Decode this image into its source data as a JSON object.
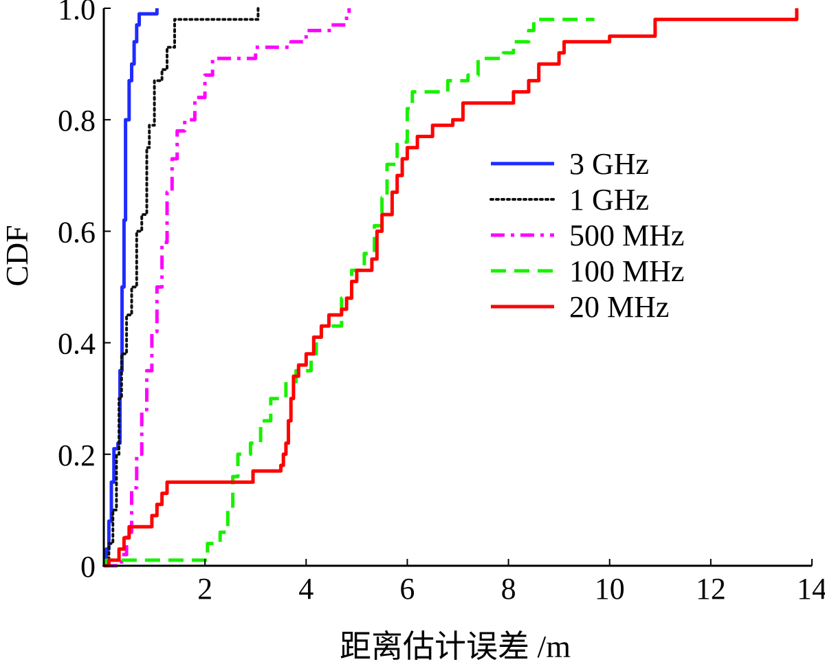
{
  "chart_data": {
    "type": "line",
    "title": "",
    "xlabel": "距离估计误差 /m",
    "ylabel": "CDF",
    "xlim": [
      0,
      14
    ],
    "ylim": [
      0,
      1
    ],
    "xticks": [
      "2",
      "4",
      "6",
      "8",
      "10",
      "12",
      "14"
    ],
    "yticks": [
      "0",
      "0.2",
      "0.4",
      "0.6",
      "0.8",
      "1.0"
    ],
    "grid": false,
    "legend_position": "center-right",
    "series": [
      {
        "name": "3 GHz",
        "color": "#1f2cff",
        "style": "solid",
        "points": [
          [
            0,
            0
          ],
          [
            0.05,
            0.03
          ],
          [
            0.1,
            0.08
          ],
          [
            0.15,
            0.15
          ],
          [
            0.2,
            0.21
          ],
          [
            0.28,
            0.22
          ],
          [
            0.32,
            0.35
          ],
          [
            0.36,
            0.5
          ],
          [
            0.4,
            0.62
          ],
          [
            0.43,
            0.8
          ],
          [
            0.5,
            0.87
          ],
          [
            0.55,
            0.9
          ],
          [
            0.6,
            0.94
          ],
          [
            0.65,
            0.97
          ],
          [
            0.7,
            0.99
          ],
          [
            0.85,
            0.99
          ],
          [
            1.05,
            1.0
          ]
        ]
      },
      {
        "name": "1 GHz",
        "color": "#111111",
        "style": "dotted",
        "points": [
          [
            0,
            0
          ],
          [
            0.1,
            0.04
          ],
          [
            0.18,
            0.1
          ],
          [
            0.25,
            0.2
          ],
          [
            0.3,
            0.3
          ],
          [
            0.35,
            0.38
          ],
          [
            0.45,
            0.45
          ],
          [
            0.55,
            0.5
          ],
          [
            0.65,
            0.6
          ],
          [
            0.75,
            0.63
          ],
          [
            0.85,
            0.75
          ],
          [
            0.9,
            0.79
          ],
          [
            1.0,
            0.87
          ],
          [
            1.15,
            0.89
          ],
          [
            1.25,
            0.93
          ],
          [
            1.4,
            0.98
          ],
          [
            1.8,
            0.98
          ],
          [
            3.0,
            0.98
          ],
          [
            3.05,
            1.0
          ]
        ]
      },
      {
        "name": "500 MHz",
        "color": "#ff00ff",
        "style": "dashdot",
        "points": [
          [
            0,
            0
          ],
          [
            0.35,
            0.02
          ],
          [
            0.45,
            0.06
          ],
          [
            0.55,
            0.14
          ],
          [
            0.65,
            0.2
          ],
          [
            0.75,
            0.28
          ],
          [
            0.85,
            0.35
          ],
          [
            0.95,
            0.42
          ],
          [
            1.05,
            0.5
          ],
          [
            1.15,
            0.58
          ],
          [
            1.25,
            0.67
          ],
          [
            1.35,
            0.73
          ],
          [
            1.45,
            0.78
          ],
          [
            1.6,
            0.8
          ],
          [
            1.8,
            0.84
          ],
          [
            2.0,
            0.88
          ],
          [
            2.15,
            0.91
          ],
          [
            2.8,
            0.91
          ],
          [
            3.0,
            0.93
          ],
          [
            3.7,
            0.94
          ],
          [
            4.0,
            0.96
          ],
          [
            4.5,
            0.97
          ],
          [
            4.8,
            0.99
          ],
          [
            4.85,
            1.0
          ]
        ]
      },
      {
        "name": "100 MHz",
        "color": "#19f000",
        "style": "dashed",
        "points": [
          [
            0,
            0
          ],
          [
            0.05,
            0.01
          ],
          [
            2.0,
            0.01
          ],
          [
            2.05,
            0.04
          ],
          [
            2.3,
            0.06
          ],
          [
            2.45,
            0.1
          ],
          [
            2.55,
            0.16
          ],
          [
            2.65,
            0.2
          ],
          [
            2.9,
            0.22
          ],
          [
            3.1,
            0.26
          ],
          [
            3.3,
            0.3
          ],
          [
            3.6,
            0.33
          ],
          [
            3.8,
            0.35
          ],
          [
            4.1,
            0.38
          ],
          [
            4.2,
            0.41
          ],
          [
            4.3,
            0.43
          ],
          [
            4.7,
            0.48
          ],
          [
            4.9,
            0.53
          ],
          [
            5.15,
            0.56
          ],
          [
            5.35,
            0.61
          ],
          [
            5.5,
            0.66
          ],
          [
            5.6,
            0.72
          ],
          [
            5.8,
            0.76
          ],
          [
            6.0,
            0.82
          ],
          [
            6.1,
            0.85
          ],
          [
            6.6,
            0.85
          ],
          [
            6.8,
            0.87
          ],
          [
            7.2,
            0.88
          ],
          [
            7.4,
            0.91
          ],
          [
            7.9,
            0.92
          ],
          [
            8.1,
            0.94
          ],
          [
            8.4,
            0.96
          ],
          [
            8.5,
            0.98
          ],
          [
            8.8,
            0.98
          ],
          [
            9.7,
            0.98
          ]
        ]
      },
      {
        "name": "20 MHz",
        "color": "#ff0000",
        "style": "solid",
        "points": [
          [
            0,
            0
          ],
          [
            0.1,
            0.01
          ],
          [
            0.3,
            0.03
          ],
          [
            0.4,
            0.05
          ],
          [
            0.5,
            0.07
          ],
          [
            0.9,
            0.07
          ],
          [
            0.95,
            0.09
          ],
          [
            1.05,
            0.11
          ],
          [
            1.15,
            0.13
          ],
          [
            1.25,
            0.15
          ],
          [
            2.9,
            0.15
          ],
          [
            2.95,
            0.17
          ],
          [
            3.3,
            0.17
          ],
          [
            3.5,
            0.18
          ],
          [
            3.55,
            0.2
          ],
          [
            3.6,
            0.22
          ],
          [
            3.65,
            0.26
          ],
          [
            3.7,
            0.3
          ],
          [
            3.75,
            0.34
          ],
          [
            3.85,
            0.36
          ],
          [
            4.0,
            0.38
          ],
          [
            4.15,
            0.41
          ],
          [
            4.3,
            0.43
          ],
          [
            4.45,
            0.45
          ],
          [
            4.7,
            0.46
          ],
          [
            4.8,
            0.48
          ],
          [
            4.9,
            0.51
          ],
          [
            5.0,
            0.53
          ],
          [
            5.3,
            0.55
          ],
          [
            5.4,
            0.6
          ],
          [
            5.5,
            0.63
          ],
          [
            5.7,
            0.67
          ],
          [
            5.8,
            0.7
          ],
          [
            5.9,
            0.73
          ],
          [
            6.0,
            0.75
          ],
          [
            6.2,
            0.77
          ],
          [
            6.5,
            0.79
          ],
          [
            6.9,
            0.8
          ],
          [
            7.1,
            0.83
          ],
          [
            7.6,
            0.83
          ],
          [
            8.1,
            0.85
          ],
          [
            8.4,
            0.87
          ],
          [
            8.6,
            0.9
          ],
          [
            9.0,
            0.92
          ],
          [
            9.1,
            0.94
          ],
          [
            10.0,
            0.95
          ],
          [
            10.9,
            0.98
          ],
          [
            13.6,
            0.98
          ],
          [
            13.7,
            1.0
          ]
        ]
      }
    ]
  }
}
